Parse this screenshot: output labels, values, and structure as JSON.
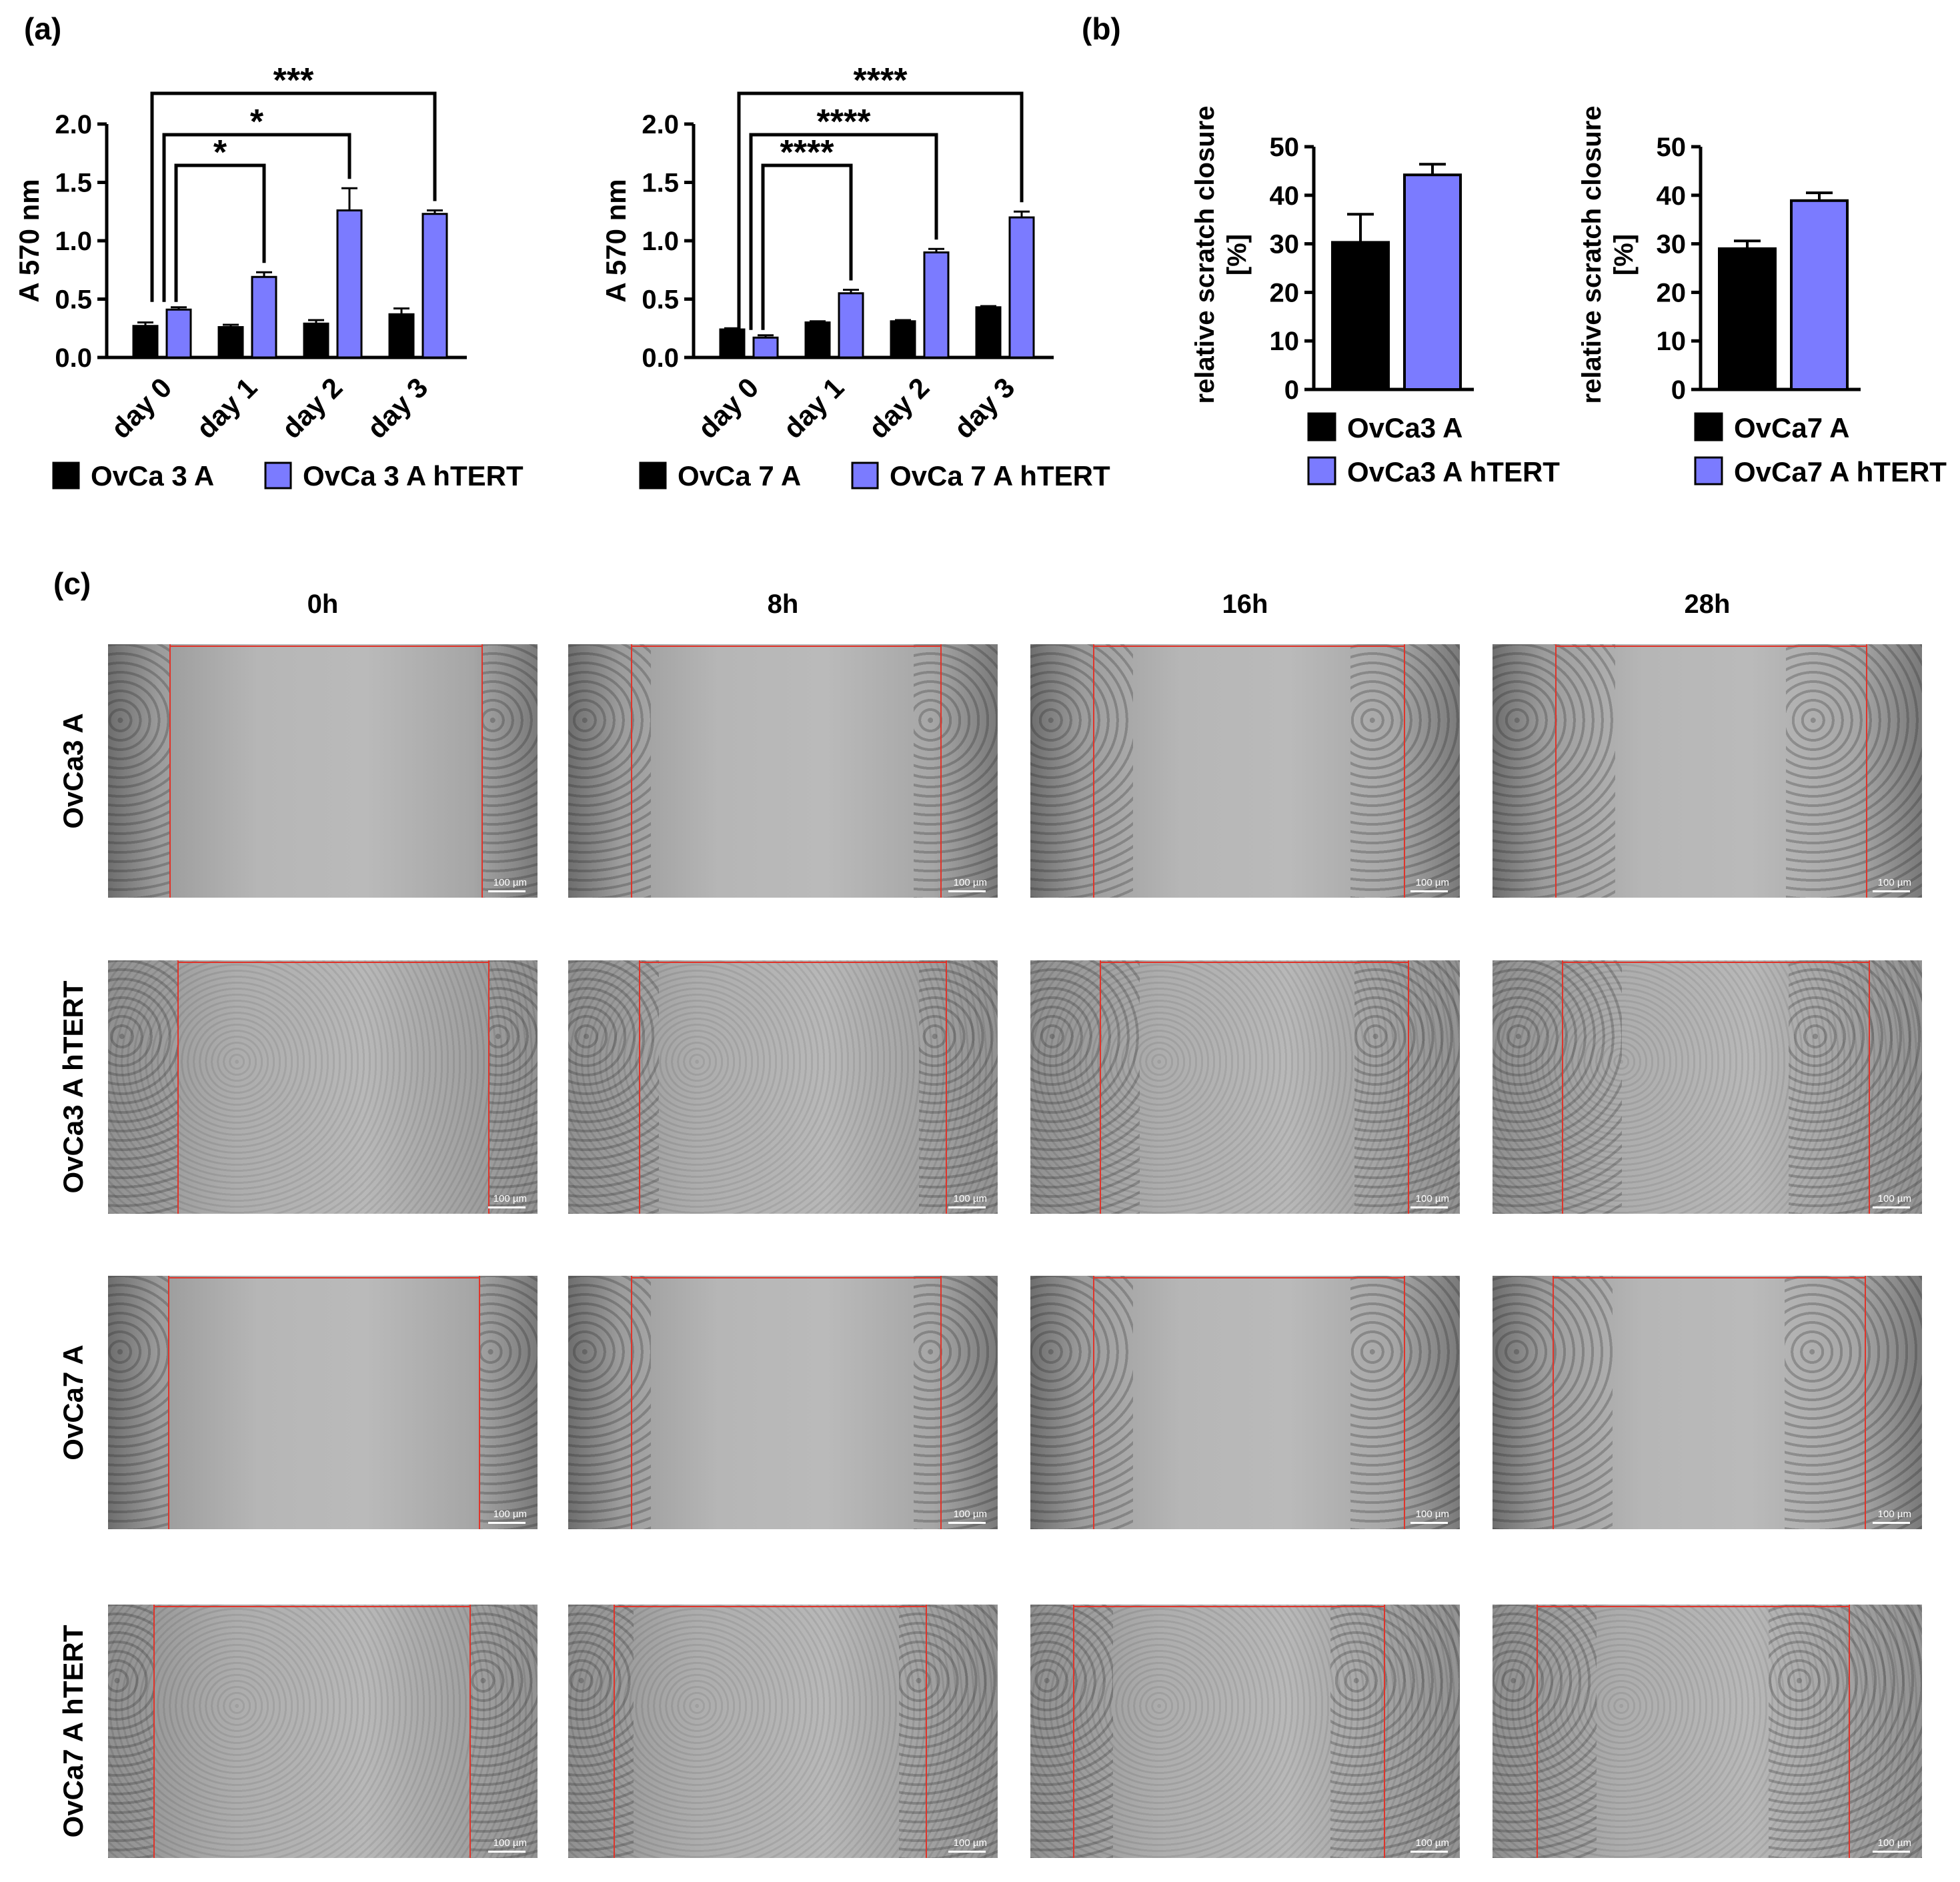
{
  "panels": {
    "a": "(a)",
    "b": "(b)",
    "c": "(c)"
  },
  "chart_data": [
    {
      "type": "bar",
      "id": "a1",
      "ylabel": "A 570 nm",
      "ylim": [
        0,
        2.0
      ],
      "yticks": [
        "0.0",
        "0.5",
        "1.0",
        "1.5",
        "2.0"
      ],
      "categories": [
        "day 0",
        "day 1",
        "day 2",
        "day 3"
      ],
      "series": [
        {
          "name": "OvCa 3 A",
          "color": "#000000",
          "values": [
            0.27,
            0.26,
            0.29,
            0.37
          ],
          "errors": [
            0.03,
            0.02,
            0.03,
            0.05
          ]
        },
        {
          "name": "OvCa 3 A hTERT",
          "color": "#7b7bff",
          "values": [
            0.41,
            0.69,
            1.26,
            1.23
          ],
          "errors": [
            0.02,
            0.04,
            0.19,
            0.03
          ]
        }
      ],
      "significance": [
        {
          "from": "day 0",
          "to": "day 1",
          "label": "*"
        },
        {
          "from": "day 0",
          "to": "day 2",
          "label": "*"
        },
        {
          "from": "day 0",
          "to": "day 3",
          "label": "***"
        }
      ]
    },
    {
      "type": "bar",
      "id": "a2",
      "ylabel": "A 570 nm",
      "ylim": [
        0,
        2.0
      ],
      "yticks": [
        "0.0",
        "0.5",
        "1.0",
        "1.5",
        "2.0"
      ],
      "categories": [
        "day 0",
        "day 1",
        "day 2",
        "day 3"
      ],
      "series": [
        {
          "name": "OvCa 7 A",
          "color": "#000000",
          "values": [
            0.24,
            0.3,
            0.31,
            0.43
          ],
          "errors": [
            0.01,
            0.01,
            0.01,
            0.01
          ]
        },
        {
          "name": "OvCa 7 A hTERT",
          "color": "#7b7bff",
          "values": [
            0.17,
            0.55,
            0.9,
            1.2
          ],
          "errors": [
            0.02,
            0.03,
            0.03,
            0.05
          ]
        }
      ],
      "significance": [
        {
          "from": "day 0",
          "to": "day 1",
          "label": "****"
        },
        {
          "from": "day 0",
          "to": "day 2",
          "label": "****"
        },
        {
          "from": "day 0",
          "to": "day 3",
          "label": "****"
        }
      ]
    },
    {
      "type": "bar",
      "id": "b1",
      "ylabel": "relative scratch closure [%]",
      "ylim": [
        0,
        50
      ],
      "yticks": [
        "0",
        "10",
        "20",
        "30",
        "40",
        "50"
      ],
      "series": [
        {
          "name": "OvCa3 A",
          "color": "#000000",
          "value": 30.3,
          "error": 5.8
        },
        {
          "name": "OvCa3 A hTERT",
          "color": "#7b7bff",
          "value": 44.2,
          "error": 2.2
        }
      ]
    },
    {
      "type": "bar",
      "id": "b2",
      "ylabel": "relative scratch closure [%]",
      "ylim": [
        0,
        50
      ],
      "yticks": [
        "0",
        "10",
        "20",
        "30",
        "40",
        "50"
      ],
      "series": [
        {
          "name": "OvCa7 A",
          "color": "#000000",
          "value": 29.0,
          "error": 1.6
        },
        {
          "name": "OvCa7 A hTERT",
          "color": "#7b7bff",
          "value": 38.9,
          "error": 1.6
        }
      ]
    }
  ],
  "micrographs": {
    "timepoints": [
      "0h",
      "8h",
      "16h",
      "28h"
    ],
    "rows": [
      "OvCa3 A",
      "OvCa3 A hTERT",
      "OvCa7 A",
      "OvCa7 A hTERT"
    ],
    "scale_bar": "100 µm"
  }
}
